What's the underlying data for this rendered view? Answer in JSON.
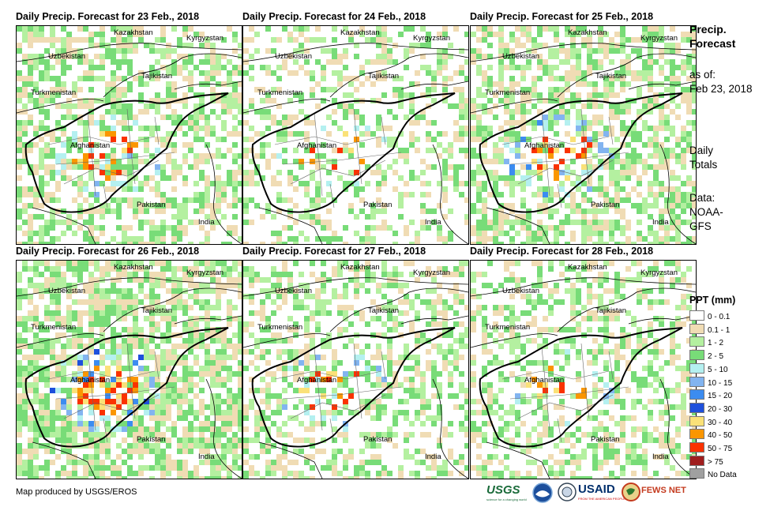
{
  "panels": [
    {
      "title": "Daily Precip. Forecast for 23 Feb., 2018",
      "seed": 3,
      "intensity": 3,
      "coverage": 0.55
    },
    {
      "title": "Daily Precip. Forecast for 24 Feb., 2018",
      "seed": 7,
      "intensity": 2,
      "coverage": 0.35
    },
    {
      "title": "Daily Precip. Forecast for 25 Feb., 2018",
      "seed": 11,
      "intensity": 4,
      "coverage": 0.6
    },
    {
      "title": "Daily Precip. Forecast for 26 Feb., 2018",
      "seed": 17,
      "intensity": 5,
      "coverage": 0.7
    },
    {
      "title": "Daily Precip. Forecast for 27 Feb., 2018",
      "seed": 23,
      "intensity": 3,
      "coverage": 0.45
    },
    {
      "title": "Daily Precip. Forecast for 28 Feb., 2018",
      "seed": 29,
      "intensity": 3,
      "coverage": 0.45
    }
  ],
  "country_labels": {
    "kazakhstan": "Kazakhstan",
    "kyrgyzstan": "Kyrgyzstan",
    "uzbekistan": "Uzbekistan",
    "tajikistan": "Tajikistan",
    "turkmenistan": "Turkmenistan",
    "afghanistan": "Afghanistan",
    "pakistan": "Pakistan",
    "india": "India"
  },
  "side": {
    "title": "Precip. Forecast",
    "as_of_label": "as of:",
    "as_of_date": "Feb 23, 2018",
    "totals": "Daily Totals",
    "data_label": "Data:",
    "data_source": "NOAA-GFS"
  },
  "legend": {
    "title": "PPT (mm)",
    "items": [
      {
        "label": "0 - 0.1",
        "color": "#ffffff"
      },
      {
        "label": "0.1 - 1",
        "color": "#f0dcb4"
      },
      {
        "label": "1 - 2",
        "color": "#b4f0a0"
      },
      {
        "label": "2 - 5",
        "color": "#78dc78"
      },
      {
        "label": "5 - 10",
        "color": "#b4f0f0"
      },
      {
        "label": "10 - 15",
        "color": "#82b4f0"
      },
      {
        "label": "15 - 20",
        "color": "#3c8cf0"
      },
      {
        "label": "20 - 30",
        "color": "#1e50dc"
      },
      {
        "label": "30 - 40",
        "color": "#fae178"
      },
      {
        "label": "40 - 50",
        "color": "#fa9600"
      },
      {
        "label": "50 - 75",
        "color": "#fa3200"
      },
      {
        "label": "> 75",
        "color": "#a01e1e"
      },
      {
        "label": "No Data",
        "color": "#a0a0a0"
      }
    ]
  },
  "credit": "Map produced by USGS/EROS",
  "logos": {
    "usgs": "USGS",
    "usgs_tagline": "science for a changing world",
    "usaid": "USAID",
    "usaid_tagline": "FROM THE AMERICAN PEOPLE",
    "fewsnet": "FEWS NET"
  }
}
